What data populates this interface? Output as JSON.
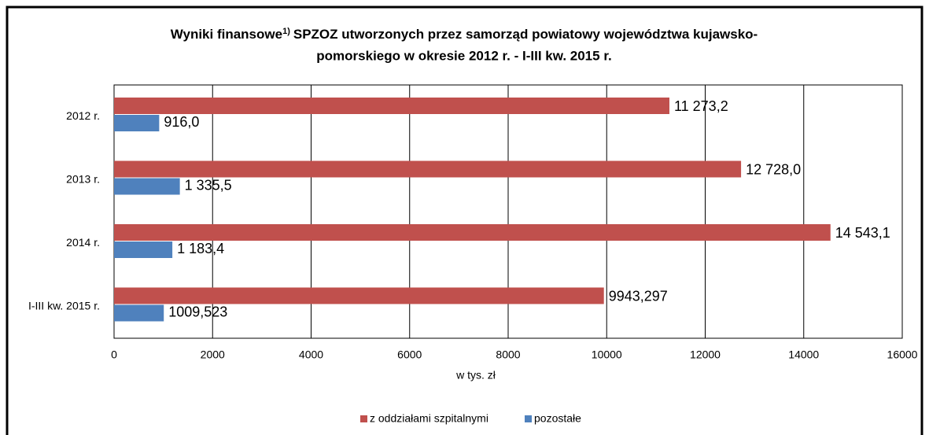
{
  "chart_data": {
    "type": "barh",
    "title_main": "Wyniki finansowe",
    "title_note": "1)",
    "title_rest": "SPZOZ utworzonych przez samorząd powiatowy województwa kujawsko-",
    "title_line2": "pomorskiego w okresie 2012 r. - I-III kw. 2015 r.",
    "x_label": "w tys. zł",
    "categories": [
      "2012 r.",
      "2013 r.",
      "2014 r.",
      "I-III kw. 2015 r."
    ],
    "series": [
      {
        "name": "z oddziałami szpitalnymi",
        "color": "#c0504d",
        "values": [
          11273.2,
          12728.0,
          14543.1,
          9943.297
        ],
        "value_labels": [
          "11 273,2",
          "12 728,0",
          "14 543,1",
          "9943,297"
        ]
      },
      {
        "name": "pozostałe",
        "color": "#4f81bd",
        "values": [
          916.0,
          1335.5,
          1183.4,
          1009.523
        ],
        "value_labels": [
          "916,0",
          "1 335,5",
          "1 183,4",
          "1009,523"
        ]
      }
    ],
    "xlim": [
      0,
      16000
    ],
    "xticks": [
      0,
      2000,
      4000,
      6000,
      8000,
      10000,
      12000,
      14000,
      16000
    ],
    "grid": true,
    "legend": "bottom"
  }
}
